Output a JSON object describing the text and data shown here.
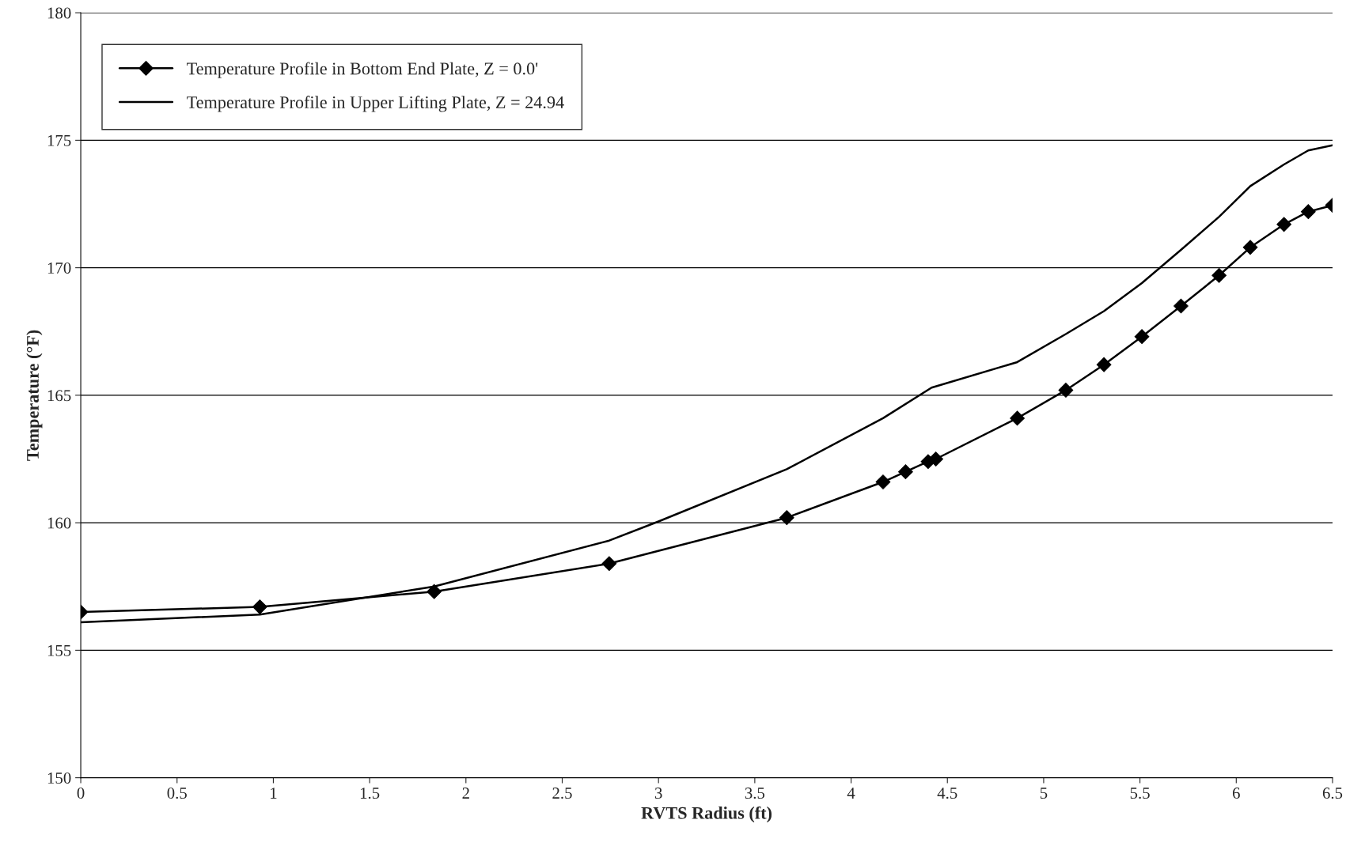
{
  "chart_data": {
    "type": "line",
    "xlabel": "RVTS Radius (ft)",
    "ylabel": "Temperature (°F)",
    "xlim": [
      0,
      6.5
    ],
    "xticks": [
      0,
      0.5,
      1,
      1.5,
      2,
      2.5,
      3,
      3.5,
      4,
      4.5,
      5,
      5.5,
      6,
      6.5
    ],
    "ylim": [
      150,
      180
    ],
    "yticks": [
      150,
      155,
      160,
      165,
      170,
      175,
      180
    ],
    "grid": "y",
    "legend": "top left",
    "series": [
      {
        "name": "Temperature Profile in Bottom End Plate, Z = 0.0'",
        "color": "#000000",
        "marker": "diamond",
        "x": [
          0,
          0.93,
          1.835,
          2.744,
          3.666,
          4.166,
          4.283,
          4.4,
          4.44,
          4.863,
          5.115,
          5.313,
          5.51,
          5.713,
          5.911,
          6.073,
          6.248,
          6.374,
          6.5
        ],
        "values": [
          156.5,
          156.7,
          157.3,
          158.4,
          160.2,
          161.6,
          162.0,
          162.4,
          162.5,
          164.1,
          165.2,
          166.2,
          167.3,
          168.5,
          169.7,
          170.8,
          171.7,
          172.2,
          172.45
        ]
      },
      {
        "name": "Temperature Profile in Upper Lifting Plate, Z = 24.94",
        "color": "#000000",
        "marker": "none",
        "x": [
          0,
          0.93,
          1.835,
          2.744,
          3.0,
          3.666,
          4.166,
          4.418,
          4.863,
          5.115,
          5.313,
          5.51,
          5.713,
          5.911,
          6.073,
          6.248,
          6.374,
          6.5
        ],
        "values": [
          156.1,
          156.4,
          157.5,
          159.3,
          160.05,
          162.1,
          164.1,
          165.3,
          166.3,
          167.4,
          168.3,
          169.4,
          170.7,
          172.0,
          173.2,
          174.05,
          174.6,
          174.8
        ]
      }
    ]
  }
}
